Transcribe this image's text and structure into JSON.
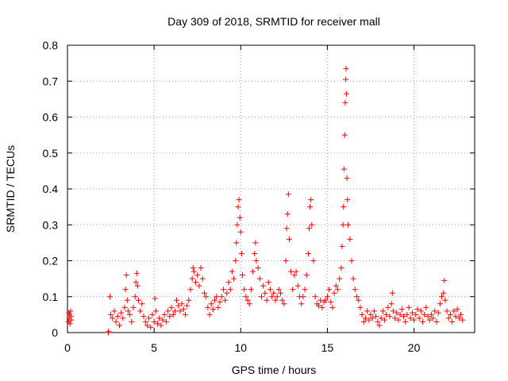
{
  "chart_data": {
    "type": "scatter",
    "title": "Day 309 of 2018, SRMTID for receiver mall",
    "xlabel": "GPS time / hours",
    "ylabel": "SRMTID / TECUs",
    "xlim": [
      0,
      23.5
    ],
    "ylim": [
      0,
      0.8
    ],
    "xticks": [
      0,
      5,
      10,
      15,
      20
    ],
    "yticks": [
      0,
      0.1,
      0.2,
      0.3,
      0.4,
      0.5,
      0.6,
      0.7,
      0.8
    ],
    "grid": true,
    "marker": "+",
    "color": "#ff0000",
    "series": [
      {
        "name": "SRMTID",
        "points": [
          [
            0.05,
            0.03
          ],
          [
            0.08,
            0.055
          ],
          [
            0.1,
            0.04
          ],
          [
            0.12,
            0.05
          ],
          [
            0.15,
            0.025
          ],
          [
            0.18,
            0.06
          ],
          [
            0.2,
            0.045
          ],
          [
            0.22,
            0.035
          ],
          [
            2.35,
            0.0
          ],
          [
            2.37,
            0.003
          ],
          [
            2.45,
            0.1
          ],
          [
            2.5,
            0.05
          ],
          [
            2.6,
            0.04
          ],
          [
            2.7,
            0.06
          ],
          [
            2.8,
            0.03
          ],
          [
            2.9,
            0.045
          ],
          [
            3.0,
            0.02
          ],
          [
            3.1,
            0.055
          ],
          [
            3.2,
            0.04
          ],
          [
            3.3,
            0.07
          ],
          [
            3.35,
            0.12
          ],
          [
            3.4,
            0.16
          ],
          [
            3.45,
            0.09
          ],
          [
            3.5,
            0.06
          ],
          [
            3.6,
            0.05
          ],
          [
            3.7,
            0.03
          ],
          [
            3.8,
            0.07
          ],
          [
            3.9,
            0.1
          ],
          [
            3.95,
            0.14
          ],
          [
            4.0,
            0.165
          ],
          [
            4.05,
            0.13
          ],
          [
            4.1,
            0.09
          ],
          [
            4.2,
            0.06
          ],
          [
            4.3,
            0.08
          ],
          [
            4.4,
            0.045
          ],
          [
            4.5,
            0.03
          ],
          [
            4.6,
            0.02
          ],
          [
            4.7,
            0.04
          ],
          [
            4.8,
            0.015
          ],
          [
            4.9,
            0.05
          ],
          [
            5.0,
            0.03
          ],
          [
            5.05,
            0.095
          ],
          [
            5.1,
            0.06
          ],
          [
            5.2,
            0.025
          ],
          [
            5.3,
            0.04
          ],
          [
            5.4,
            0.02
          ],
          [
            5.5,
            0.035
          ],
          [
            5.6,
            0.05
          ],
          [
            5.7,
            0.03
          ],
          [
            5.8,
            0.06
          ],
          [
            5.9,
            0.045
          ],
          [
            6.0,
            0.07
          ],
          [
            6.1,
            0.05
          ],
          [
            6.2,
            0.06
          ],
          [
            6.3,
            0.09
          ],
          [
            6.4,
            0.075
          ],
          [
            6.5,
            0.06
          ],
          [
            6.6,
            0.08
          ],
          [
            6.7,
            0.065
          ],
          [
            6.8,
            0.05
          ],
          [
            6.9,
            0.075
          ],
          [
            7.0,
            0.09
          ],
          [
            7.1,
            0.12
          ],
          [
            7.2,
            0.15
          ],
          [
            7.25,
            0.18
          ],
          [
            7.3,
            0.17
          ],
          [
            7.4,
            0.14
          ],
          [
            7.5,
            0.16
          ],
          [
            7.6,
            0.13
          ],
          [
            7.7,
            0.18
          ],
          [
            7.8,
            0.15
          ],
          [
            7.9,
            0.11
          ],
          [
            8.0,
            0.1
          ],
          [
            8.1,
            0.07
          ],
          [
            8.2,
            0.05
          ],
          [
            8.3,
            0.08
          ],
          [
            8.4,
            0.065
          ],
          [
            8.5,
            0.09
          ],
          [
            8.6,
            0.1
          ],
          [
            8.7,
            0.07
          ],
          [
            8.8,
            0.085
          ],
          [
            8.9,
            0.1
          ],
          [
            9.0,
            0.12
          ],
          [
            9.1,
            0.09
          ],
          [
            9.2,
            0.11
          ],
          [
            9.3,
            0.14
          ],
          [
            9.4,
            0.12
          ],
          [
            9.5,
            0.17
          ],
          [
            9.6,
            0.15
          ],
          [
            9.7,
            0.2
          ],
          [
            9.75,
            0.25
          ],
          [
            9.8,
            0.3
          ],
          [
            9.85,
            0.35
          ],
          [
            9.9,
            0.37
          ],
          [
            9.95,
            0.32
          ],
          [
            10.0,
            0.28
          ],
          [
            10.05,
            0.22
          ],
          [
            10.1,
            0.16
          ],
          [
            10.2,
            0.12
          ],
          [
            10.3,
            0.1
          ],
          [
            10.4,
            0.09
          ],
          [
            10.5,
            0.08
          ],
          [
            10.6,
            0.12
          ],
          [
            10.7,
            0.17
          ],
          [
            10.8,
            0.22
          ],
          [
            10.85,
            0.25
          ],
          [
            10.9,
            0.2
          ],
          [
            11.0,
            0.18
          ],
          [
            11.1,
            0.15
          ],
          [
            11.2,
            0.1
          ],
          [
            11.3,
            0.13
          ],
          [
            11.4,
            0.11
          ],
          [
            11.5,
            0.09
          ],
          [
            11.6,
            0.14
          ],
          [
            11.7,
            0.12
          ],
          [
            11.8,
            0.1
          ],
          [
            11.9,
            0.11
          ],
          [
            12.0,
            0.09
          ],
          [
            12.1,
            0.1
          ],
          [
            12.2,
            0.12
          ],
          [
            12.3,
            0.11
          ],
          [
            12.4,
            0.09
          ],
          [
            12.5,
            0.08
          ],
          [
            12.6,
            0.2
          ],
          [
            12.65,
            0.29
          ],
          [
            12.7,
            0.33
          ],
          [
            12.75,
            0.385
          ],
          [
            12.8,
            0.26
          ],
          [
            12.9,
            0.17
          ],
          [
            13.0,
            0.12
          ],
          [
            13.1,
            0.16
          ],
          [
            13.2,
            0.17
          ],
          [
            13.3,
            0.13
          ],
          [
            13.4,
            0.1
          ],
          [
            13.5,
            0.08
          ],
          [
            13.6,
            0.1
          ],
          [
            13.7,
            0.12
          ],
          [
            13.8,
            0.16
          ],
          [
            13.9,
            0.22
          ],
          [
            13.95,
            0.29
          ],
          [
            14.0,
            0.35
          ],
          [
            14.05,
            0.37
          ],
          [
            14.1,
            0.3
          ],
          [
            14.2,
            0.2
          ],
          [
            14.3,
            0.1
          ],
          [
            14.4,
            0.08
          ],
          [
            14.5,
            0.075
          ],
          [
            14.6,
            0.09
          ],
          [
            14.7,
            0.07
          ],
          [
            14.8,
            0.085
          ],
          [
            14.9,
            0.09
          ],
          [
            15.0,
            0.1
          ],
          [
            15.1,
            0.12
          ],
          [
            15.2,
            0.085
          ],
          [
            15.3,
            0.07
          ],
          [
            15.4,
            0.11
          ],
          [
            15.5,
            0.13
          ],
          [
            15.6,
            0.12
          ],
          [
            15.7,
            0.15
          ],
          [
            15.8,
            0.18
          ],
          [
            15.85,
            0.24
          ],
          [
            15.9,
            0.3
          ],
          [
            15.93,
            0.35
          ],
          [
            15.96,
            0.455
          ],
          [
            16.0,
            0.55
          ],
          [
            16.03,
            0.64
          ],
          [
            16.06,
            0.705
          ],
          [
            16.08,
            0.735
          ],
          [
            16.1,
            0.665
          ],
          [
            16.13,
            0.43
          ],
          [
            16.16,
            0.37
          ],
          [
            16.2,
            0.3
          ],
          [
            16.3,
            0.26
          ],
          [
            16.4,
            0.2
          ],
          [
            16.5,
            0.15
          ],
          [
            16.6,
            0.12
          ],
          [
            16.7,
            0.1
          ],
          [
            16.8,
            0.09
          ],
          [
            16.9,
            0.07
          ],
          [
            17.0,
            0.05
          ],
          [
            17.1,
            0.03
          ],
          [
            17.2,
            0.04
          ],
          [
            17.3,
            0.06
          ],
          [
            17.4,
            0.035
          ],
          [
            17.5,
            0.05
          ],
          [
            17.6,
            0.04
          ],
          [
            17.7,
            0.06
          ],
          [
            17.8,
            0.045
          ],
          [
            17.9,
            0.03
          ],
          [
            18.0,
            0.02
          ],
          [
            18.1,
            0.04
          ],
          [
            18.2,
            0.06
          ],
          [
            18.3,
            0.035
          ],
          [
            18.4,
            0.05
          ],
          [
            18.5,
            0.07
          ],
          [
            18.6,
            0.045
          ],
          [
            18.7,
            0.08
          ],
          [
            18.75,
            0.11
          ],
          [
            18.8,
            0.06
          ],
          [
            18.9,
            0.04
          ],
          [
            19.0,
            0.055
          ],
          [
            19.1,
            0.035
          ],
          [
            19.2,
            0.05
          ],
          [
            19.3,
            0.065
          ],
          [
            19.4,
            0.045
          ],
          [
            19.5,
            0.03
          ],
          [
            19.6,
            0.05
          ],
          [
            19.7,
            0.07
          ],
          [
            19.8,
            0.04
          ],
          [
            19.9,
            0.055
          ],
          [
            20.0,
            0.035
          ],
          [
            20.1,
            0.05
          ],
          [
            20.2,
            0.065
          ],
          [
            20.3,
            0.04
          ],
          [
            20.4,
            0.06
          ],
          [
            20.5,
            0.03
          ],
          [
            20.6,
            0.05
          ],
          [
            20.7,
            0.07
          ],
          [
            20.8,
            0.045
          ],
          [
            20.9,
            0.035
          ],
          [
            21.0,
            0.05
          ],
          [
            21.1,
            0.04
          ],
          [
            21.2,
            0.06
          ],
          [
            21.3,
            0.03
          ],
          [
            21.4,
            0.055
          ],
          [
            21.5,
            0.08
          ],
          [
            21.6,
            0.1
          ],
          [
            21.7,
            0.11
          ],
          [
            21.75,
            0.145
          ],
          [
            21.8,
            0.09
          ],
          [
            21.9,
            0.06
          ],
          [
            22.0,
            0.04
          ],
          [
            22.1,
            0.05
          ],
          [
            22.2,
            0.03
          ],
          [
            22.3,
            0.06
          ],
          [
            22.4,
            0.045
          ],
          [
            22.5,
            0.065
          ],
          [
            22.6,
            0.04
          ],
          [
            22.7,
            0.05
          ],
          [
            22.8,
            0.035
          ]
        ]
      }
    ]
  }
}
